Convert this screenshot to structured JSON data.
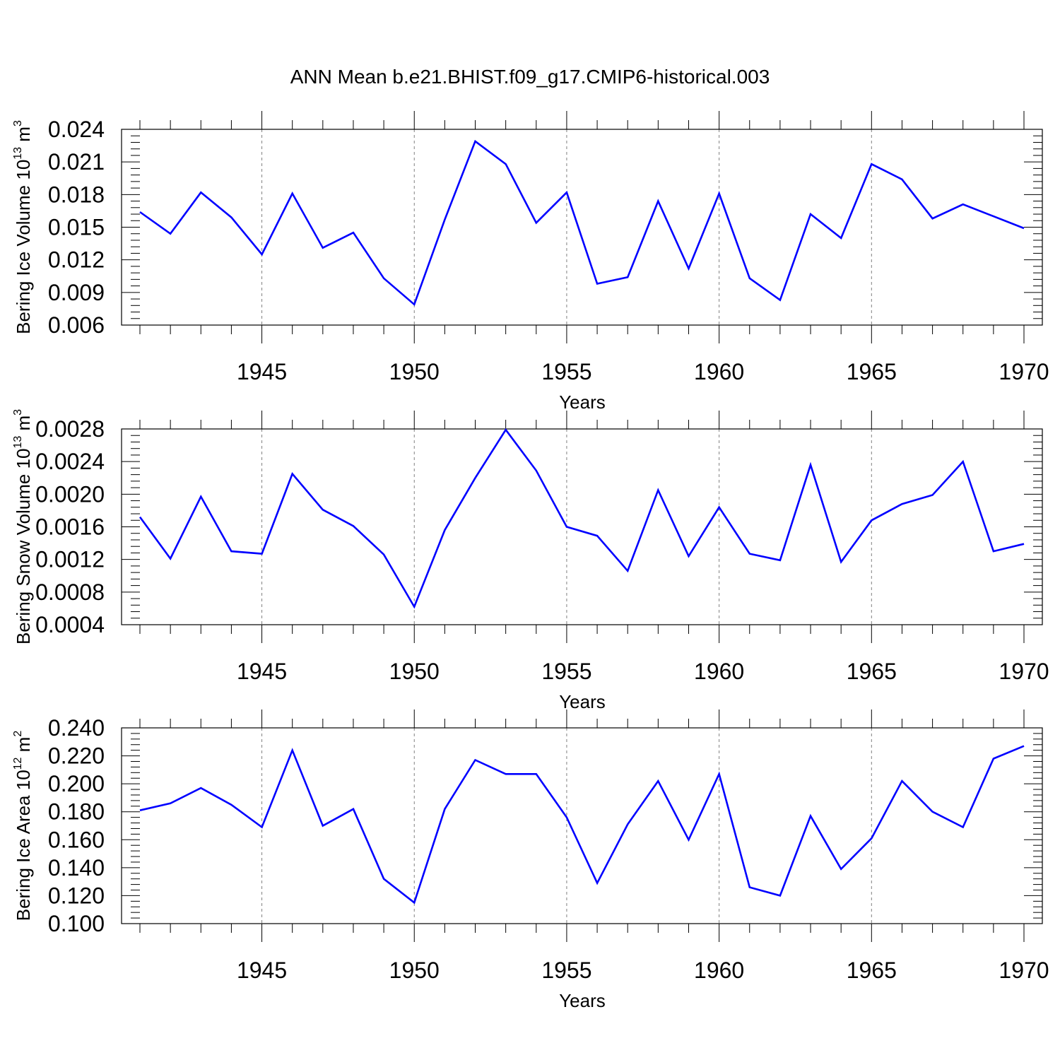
{
  "title": "ANN Mean b.e21.BHIST.f09_g17.CMIP6-historical.003",
  "line_color": "#0000ff",
  "chart_data": [
    {
      "type": "line",
      "ylabel": "Bering Ice Volume 10",
      "ylabel_exp": "13",
      "ylabel_unit": "m",
      "ylabel_unit_exp": "3",
      "xlabel": "Years",
      "xlim": [
        1941,
        1970
      ],
      "ylim": [
        0.006,
        0.024
      ],
      "ytick_values": [
        0.006,
        0.009,
        0.012,
        0.015,
        0.018,
        0.021,
        0.024
      ],
      "ytick_labels": [
        "0.006",
        "0.009",
        "0.012",
        "0.015",
        "0.018",
        "0.021",
        "0.024"
      ],
      "xticks": [
        1945,
        1950,
        1955,
        1960,
        1965,
        1970
      ],
      "xtick_labels": [
        "1945",
        "1950",
        "1955",
        "1960",
        "1965",
        "1970"
      ],
      "grid": "x dashed at major ticks",
      "x": [
        1941,
        1942,
        1943,
        1944,
        1945,
        1946,
        1947,
        1948,
        1949,
        1950,
        1951,
        1952,
        1953,
        1954,
        1955,
        1956,
        1957,
        1958,
        1959,
        1960,
        1961,
        1962,
        1963,
        1964,
        1965,
        1966,
        1967,
        1968,
        1969,
        1970
      ],
      "values": [
        0.0164,
        0.0144,
        0.0182,
        0.0159,
        0.0125,
        0.0181,
        0.0131,
        0.0145,
        0.0103,
        0.0079,
        0.0157,
        0.0229,
        0.0208,
        0.0154,
        0.0182,
        0.0098,
        0.0104,
        0.0174,
        0.0112,
        0.0181,
        0.0103,
        0.0083,
        0.0162,
        0.014,
        0.0208,
        0.0194,
        0.0158,
        0.0171,
        0.016,
        0.0149
      ]
    },
    {
      "type": "line",
      "ylabel": "Bering Snow Volume 10",
      "ylabel_exp": "13",
      "ylabel_unit": "m",
      "ylabel_unit_exp": "3",
      "xlabel": "Years",
      "xlim": [
        1941,
        1970
      ],
      "ylim": [
        0.0004,
        0.0028
      ],
      "ytick_values": [
        0.0004,
        0.0008,
        0.0012,
        0.0016,
        0.002,
        0.0024,
        0.0028
      ],
      "ytick_labels": [
        "0.0004",
        "0.0008",
        "0.0012",
        "0.0016",
        "0.0020",
        "0.0024",
        "0.0028"
      ],
      "xticks": [
        1945,
        1950,
        1955,
        1960,
        1965,
        1970
      ],
      "xtick_labels": [
        "1945",
        "1950",
        "1955",
        "1960",
        "1965",
        "1970"
      ],
      "grid": "x dashed at major ticks",
      "x": [
        1941,
        1942,
        1943,
        1944,
        1945,
        1946,
        1947,
        1948,
        1949,
        1950,
        1951,
        1952,
        1953,
        1954,
        1955,
        1956,
        1957,
        1958,
        1959,
        1960,
        1961,
        1962,
        1963,
        1964,
        1965,
        1966,
        1967,
        1968,
        1969,
        1970
      ],
      "values": [
        0.00172,
        0.00121,
        0.00197,
        0.0013,
        0.00127,
        0.00225,
        0.00181,
        0.00161,
        0.00126,
        0.00062,
        0.00156,
        0.0022,
        0.00279,
        0.00229,
        0.0016,
        0.00149,
        0.00106,
        0.00205,
        0.00124,
        0.00184,
        0.00127,
        0.00119,
        0.00236,
        0.00117,
        0.00168,
        0.00188,
        0.00199,
        0.0024,
        0.0013,
        0.00139
      ]
    },
    {
      "type": "line",
      "ylabel": "Bering Ice Area 10",
      "ylabel_exp": "12",
      "ylabel_unit": "m",
      "ylabel_unit_exp": "2",
      "xlabel": "Years",
      "xlim": [
        1941,
        1970
      ],
      "ylim": [
        0.1,
        0.24
      ],
      "ytick_values": [
        0.1,
        0.12,
        0.14,
        0.16,
        0.18,
        0.2,
        0.22,
        0.24
      ],
      "ytick_labels": [
        "0.100",
        "0.120",
        "0.140",
        "0.160",
        "0.180",
        "0.200",
        "0.220",
        "0.240"
      ],
      "xticks": [
        1945,
        1950,
        1955,
        1960,
        1965,
        1970
      ],
      "xtick_labels": [
        "1945",
        "1950",
        "1955",
        "1960",
        "1965",
        "1970"
      ],
      "grid": "x dashed at major ticks",
      "x": [
        1941,
        1942,
        1943,
        1944,
        1945,
        1946,
        1947,
        1948,
        1949,
        1950,
        1951,
        1952,
        1953,
        1954,
        1955,
        1956,
        1957,
        1958,
        1959,
        1960,
        1961,
        1962,
        1963,
        1964,
        1965,
        1966,
        1967,
        1968,
        1969,
        1970
      ],
      "values": [
        0.181,
        0.186,
        0.197,
        0.185,
        0.169,
        0.224,
        0.17,
        0.182,
        0.132,
        0.115,
        0.182,
        0.217,
        0.207,
        0.207,
        0.176,
        0.129,
        0.171,
        0.202,
        0.16,
        0.207,
        0.126,
        0.12,
        0.177,
        0.139,
        0.161,
        0.202,
        0.18,
        0.169,
        0.218,
        0.227
      ]
    }
  ]
}
